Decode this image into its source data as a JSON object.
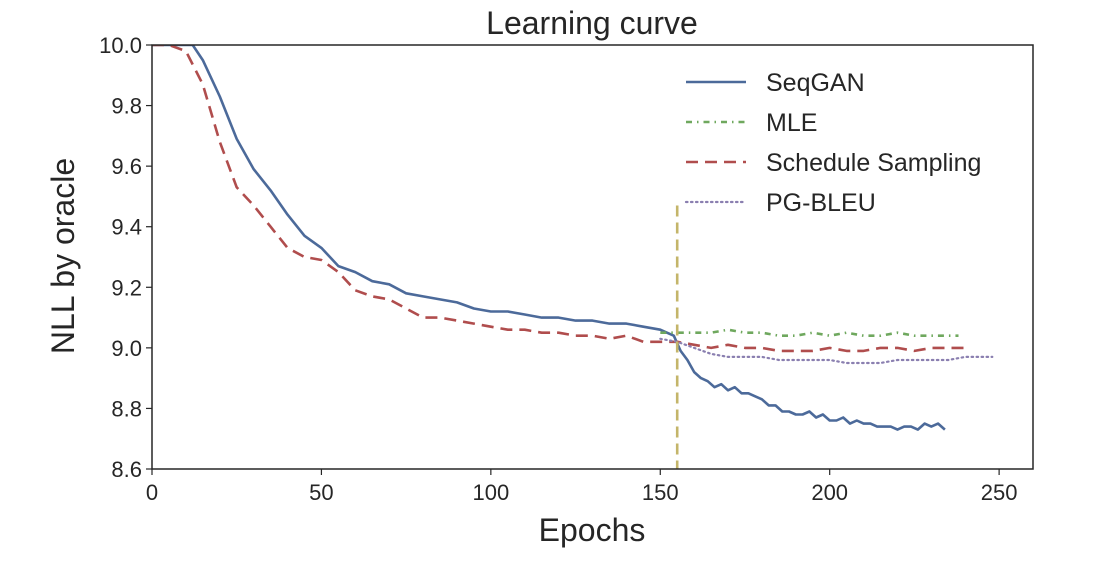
{
  "chart_data": {
    "type": "line",
    "title": "Learning curve",
    "xlabel": "Epochs",
    "ylabel": "NLL by oracle",
    "xlim": [
      0,
      260
    ],
    "ylim": [
      8.6,
      10.0
    ],
    "xticks": [
      "0",
      "50",
      "100",
      "150",
      "200",
      "250"
    ],
    "yticks": [
      "8.6",
      "8.8",
      "9.0",
      "9.2",
      "9.4",
      "9.6",
      "9.8",
      "10.0"
    ],
    "grid": false,
    "legend_position": "top-right",
    "vline": {
      "x": 155,
      "y_top": 9.47,
      "color": "#c4b56a"
    },
    "series": [
      {
        "name": "SeqGAN",
        "color": "#4c6a9a",
        "style": "solid",
        "x": [
          0,
          5,
          10,
          12,
          15,
          20,
          25,
          30,
          35,
          40,
          45,
          50,
          55,
          60,
          65,
          70,
          75,
          80,
          85,
          90,
          95,
          100,
          105,
          110,
          115,
          120,
          125,
          130,
          135,
          140,
          145,
          150,
          152,
          154,
          156,
          158,
          160,
          162,
          164,
          166,
          168,
          170,
          172,
          174,
          176,
          178,
          180,
          182,
          184,
          186,
          188,
          190,
          192,
          194,
          196,
          198,
          200,
          202,
          204,
          206,
          208,
          210,
          212,
          214,
          216,
          218,
          220,
          222,
          224,
          226,
          228,
          230,
          232,
          234
        ],
        "y": [
          10.0,
          10.0,
          10.0,
          10.0,
          9.95,
          9.83,
          9.69,
          9.59,
          9.52,
          9.44,
          9.37,
          9.33,
          9.27,
          9.25,
          9.22,
          9.21,
          9.18,
          9.17,
          9.16,
          9.15,
          9.13,
          9.12,
          9.12,
          9.11,
          9.1,
          9.1,
          9.09,
          9.09,
          9.08,
          9.08,
          9.07,
          9.06,
          9.05,
          9.04,
          8.99,
          8.96,
          8.92,
          8.9,
          8.89,
          8.87,
          8.88,
          8.86,
          8.87,
          8.85,
          8.85,
          8.84,
          8.83,
          8.81,
          8.81,
          8.79,
          8.79,
          8.78,
          8.78,
          8.79,
          8.77,
          8.78,
          8.76,
          8.76,
          8.77,
          8.75,
          8.76,
          8.75,
          8.75,
          8.74,
          8.74,
          8.74,
          8.73,
          8.74,
          8.74,
          8.73,
          8.75,
          8.74,
          8.75,
          8.73
        ]
      },
      {
        "name": "MLE",
        "color": "#6fa85e",
        "style": "dashdot",
        "x": [
          150,
          155,
          160,
          165,
          170,
          175,
          180,
          185,
          190,
          195,
          200,
          205,
          210,
          215,
          220,
          225,
          230,
          235,
          238
        ],
        "y": [
          9.05,
          9.05,
          9.05,
          9.05,
          9.06,
          9.05,
          9.05,
          9.04,
          9.04,
          9.05,
          9.04,
          9.05,
          9.04,
          9.04,
          9.05,
          9.04,
          9.04,
          9.04,
          9.04
        ]
      },
      {
        "name": "Schedule Sampling",
        "color": "#b04d4d",
        "style": "dashed",
        "x": [
          0,
          5,
          10,
          15,
          20,
          25,
          30,
          35,
          40,
          45,
          50,
          55,
          60,
          65,
          70,
          75,
          80,
          85,
          90,
          95,
          100,
          105,
          110,
          115,
          120,
          125,
          130,
          135,
          140,
          145,
          150,
          155,
          160,
          165,
          170,
          175,
          180,
          185,
          190,
          195,
          200,
          205,
          210,
          215,
          220,
          225,
          230,
          235,
          240
        ],
        "y": [
          10.0,
          10.0,
          9.98,
          9.87,
          9.68,
          9.53,
          9.47,
          9.4,
          9.33,
          9.3,
          9.29,
          9.25,
          9.19,
          9.17,
          9.16,
          9.13,
          9.1,
          9.1,
          9.09,
          9.08,
          9.07,
          9.06,
          9.06,
          9.05,
          9.05,
          9.04,
          9.04,
          9.03,
          9.04,
          9.02,
          9.02,
          9.02,
          9.01,
          9.0,
          9.01,
          9.0,
          9.0,
          8.99,
          8.99,
          8.99,
          9.0,
          8.99,
          8.99,
          9.0,
          9.0,
          8.99,
          9.0,
          9.0,
          9.0
        ]
      },
      {
        "name": "PG-BLEU",
        "color": "#8a7fb0",
        "style": "dotted",
        "x": [
          150,
          155,
          160,
          165,
          170,
          175,
          180,
          185,
          190,
          195,
          200,
          205,
          210,
          215,
          220,
          225,
          230,
          235,
          240,
          245,
          248
        ],
        "y": [
          9.03,
          9.02,
          9.0,
          8.98,
          8.97,
          8.97,
          8.97,
          8.96,
          8.96,
          8.96,
          8.96,
          8.95,
          8.95,
          8.95,
          8.96,
          8.96,
          8.96,
          8.96,
          8.97,
          8.97,
          8.97
        ]
      }
    ]
  }
}
